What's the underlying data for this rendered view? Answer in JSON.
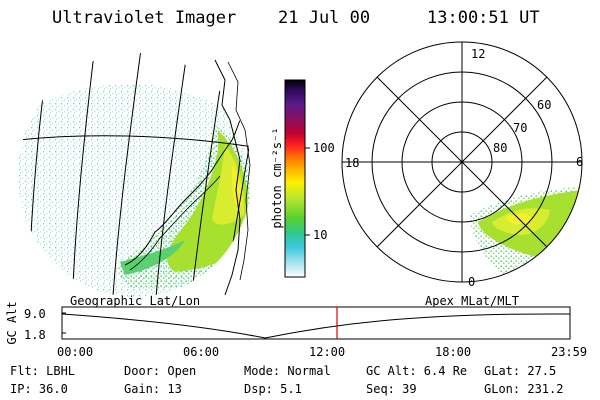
{
  "header": {
    "title": "Ultraviolet Imager",
    "date": "21 Jul 00",
    "time": "13:00:51 UT"
  },
  "colorbar": {
    "label": "photon cm⁻²s⁻¹",
    "ticks": [
      "100",
      "10"
    ],
    "colors": [
      "#000000",
      "#2a0a5a",
      "#5a1a8a",
      "#8a1060",
      "#c00030",
      "#ff2020",
      "#ff7a00",
      "#ffb000",
      "#fff000",
      "#b8e830",
      "#5ad030",
      "#30c890",
      "#40c8e0",
      "#a8e4f0",
      "#ffffff"
    ]
  },
  "geo_map": {
    "label": "Geographic Lat/Lon"
  },
  "polar_plot": {
    "label": "Apex MLat/MLT",
    "mlt_labels": {
      "top": "12",
      "left": "18",
      "right": "6",
      "bottom": "0"
    },
    "lat_labels": [
      "60",
      "70",
      "80"
    ]
  },
  "altitude_plot": {
    "ylabel": "GC Alt",
    "yticks": [
      "9.0",
      "1.8"
    ],
    "xticks": [
      "00:00",
      "06:00",
      "12:00",
      "18:00",
      "23:59"
    ],
    "current_marker_color": "#e00000"
  },
  "footer": {
    "rows": [
      [
        "Flt: LBHL",
        "Door: Open",
        "Mode: Normal",
        "GC Alt: 6.4 Re",
        "GLat:  27.5"
      ],
      [
        "IP: 36.0",
        "Gain: 13",
        "Dsp:    5.1",
        "Seq: 39",
        "GLon: 231.2"
      ]
    ]
  }
}
